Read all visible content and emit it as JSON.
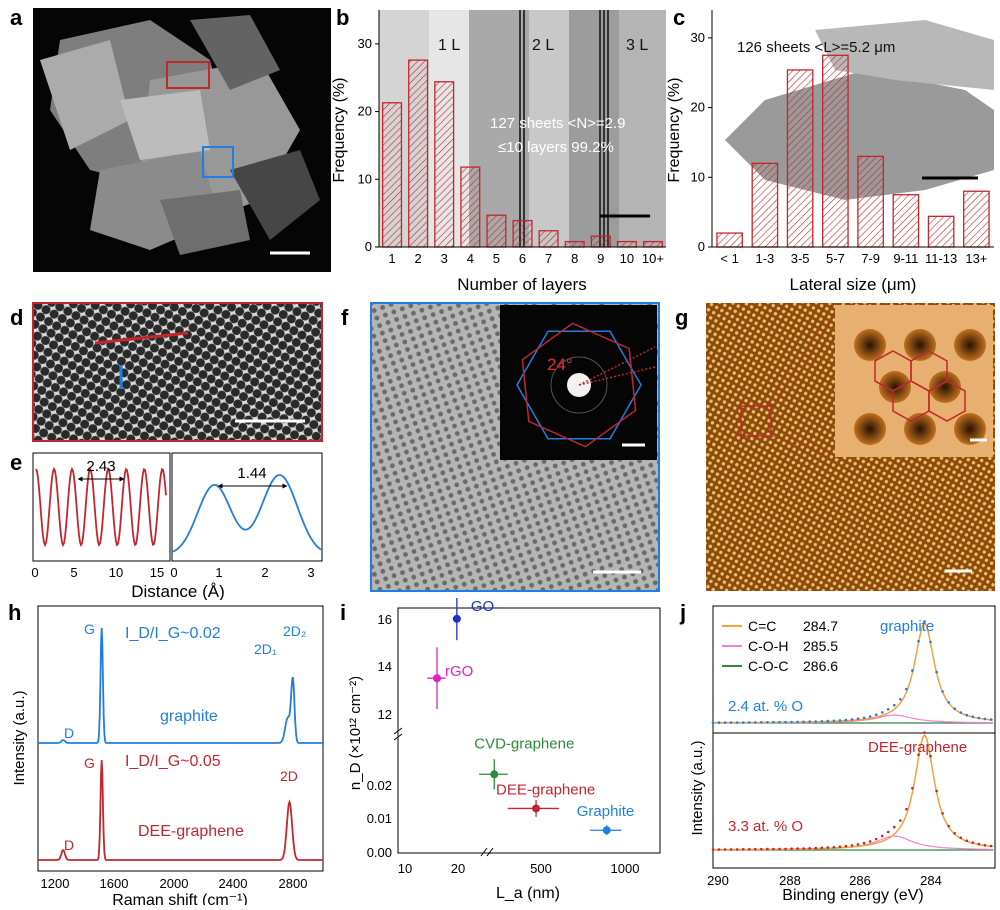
{
  "panel_letters": {
    "a": "a",
    "b": "b",
    "c": "c",
    "d": "d",
    "e": "e",
    "f": "f",
    "g": "g",
    "h": "h",
    "i": "i",
    "j": "j"
  },
  "colors": {
    "red": "#c1272d",
    "blue": "#1f7fe0",
    "orange": "#f5a03c",
    "pink": "#ee82d8",
    "green": "#2e8b3a",
    "dark_red": "#b5202a",
    "navy": "#2030c0",
    "magenta": "#e020c0"
  },
  "panel_b": {
    "overlay_labels": [
      "1 L",
      "2 L",
      "3 L"
    ],
    "annotation_line1": "127 sheets <N>=2.9",
    "annotation_line2": "≤10 layers  99.2%"
  },
  "panel_c": {
    "annotation": "126 sheets  <L>=5.2 μm"
  },
  "panel_e": {
    "left_value": "2.43",
    "right_value": "1.44",
    "xlabel": "Distance (Å)",
    "left_ticks": [
      "0",
      "5",
      "10",
      "15"
    ],
    "right_ticks": [
      "0",
      "1",
      "2",
      "3"
    ]
  },
  "panel_f": {
    "angle": "24°"
  },
  "panel_h": {
    "ylabel": "Intensity (a.u.)",
    "xlabel": "Raman shift (cm⁻¹)",
    "top_ratio": "I_D/I_G~0.02",
    "bottom_ratio": "I_D/I_G~0.05",
    "top_name": "graphite",
    "bottom_name": "DEE-graphene",
    "peaks_top": [
      "D",
      "G",
      "2D₁",
      "2D₂"
    ],
    "peaks_bottom": [
      "D",
      "G",
      "2D"
    ],
    "xticks": [
      "1200",
      "1600",
      "2000",
      "2400",
      "2800"
    ]
  },
  "panel_j": {
    "ylabel": "Intensity (a.u.)",
    "xlabel": "Binding energy (eV)",
    "legend": [
      {
        "name": "C=C",
        "value": "284.7",
        "color": "#f5a03c"
      },
      {
        "name": "C-O-H",
        "value": "285.5",
        "color": "#ee82d8"
      },
      {
        "name": "C-O-C",
        "value": "286.6",
        "color": "#2e8b3a"
      }
    ],
    "top_name": "graphite",
    "top_oxygen": "2.4 at. % O",
    "bottom_name": "DEE-graphene",
    "bottom_oxygen": "3.3 at. % O",
    "xticks": [
      "290",
      "288",
      "286",
      "284"
    ]
  },
  "chart_data": [
    {
      "type": "bar",
      "panel": "b",
      "categories": [
        "1",
        "2",
        "3",
        "4",
        "5",
        "6",
        "7",
        "8",
        "9",
        "10",
        "10+"
      ],
      "values": [
        21.3,
        27.6,
        24.4,
        11.8,
        4.7,
        3.9,
        2.4,
        0.8,
        1.6,
        0.8,
        0.8
      ],
      "xlabel": "Number of layers",
      "ylabel": "Frequency (%)",
      "ylim": [
        0,
        35
      ],
      "yticks": [
        0,
        10,
        20,
        30
      ]
    },
    {
      "type": "bar",
      "panel": "c",
      "categories": [
        "< 1",
        "1-3",
        "3-5",
        "5-7",
        "7-9",
        "9-11",
        "11-13",
        "13+"
      ],
      "values": [
        2.0,
        12.0,
        25.4,
        27.5,
        13.0,
        7.5,
        4.4,
        8.0
      ],
      "xlabel": "Lateral size (μm)",
      "ylabel": "Frequency (%)",
      "ylim": [
        0,
        34
      ],
      "yticks": [
        0,
        10,
        20,
        30
      ]
    },
    {
      "type": "scatter",
      "panel": "i",
      "xlabel": "L_a (nm)",
      "ylabel": "n_D (×10¹² cm⁻²)",
      "xticks": [
        "10",
        "20",
        "500",
        "1000"
      ],
      "yticks_upper": [
        "12",
        "14",
        "16"
      ],
      "yticks_lower": [
        "0.00",
        "0.01",
        "0.02"
      ],
      "points": [
        {
          "name": "GO",
          "x": 19.7,
          "y": 16.05,
          "xerr": 1.0,
          "yerr": 0.9,
          "color": "#2030c0"
        },
        {
          "name": "rGO",
          "x": 15.2,
          "y": 13.55,
          "xerr": 1.8,
          "yerr": 1.3,
          "color": "#e020c0"
        },
        {
          "name": "CVD-graphene",
          "x": 340,
          "y": 0.0235,
          "xerr": 40,
          "yerr": 0.0045,
          "color": "#2e8b3a"
        },
        {
          "name": "DEE-graphene",
          "x": 480,
          "y": 0.0133,
          "xerr": 100,
          "yerr": 0.0025,
          "color": "#c1272d"
        },
        {
          "name": "Graphite",
          "x": 860,
          "y": 0.0068,
          "xerr": 110,
          "yerr": 0.0015,
          "color": "#1f7fe0"
        }
      ]
    }
  ]
}
